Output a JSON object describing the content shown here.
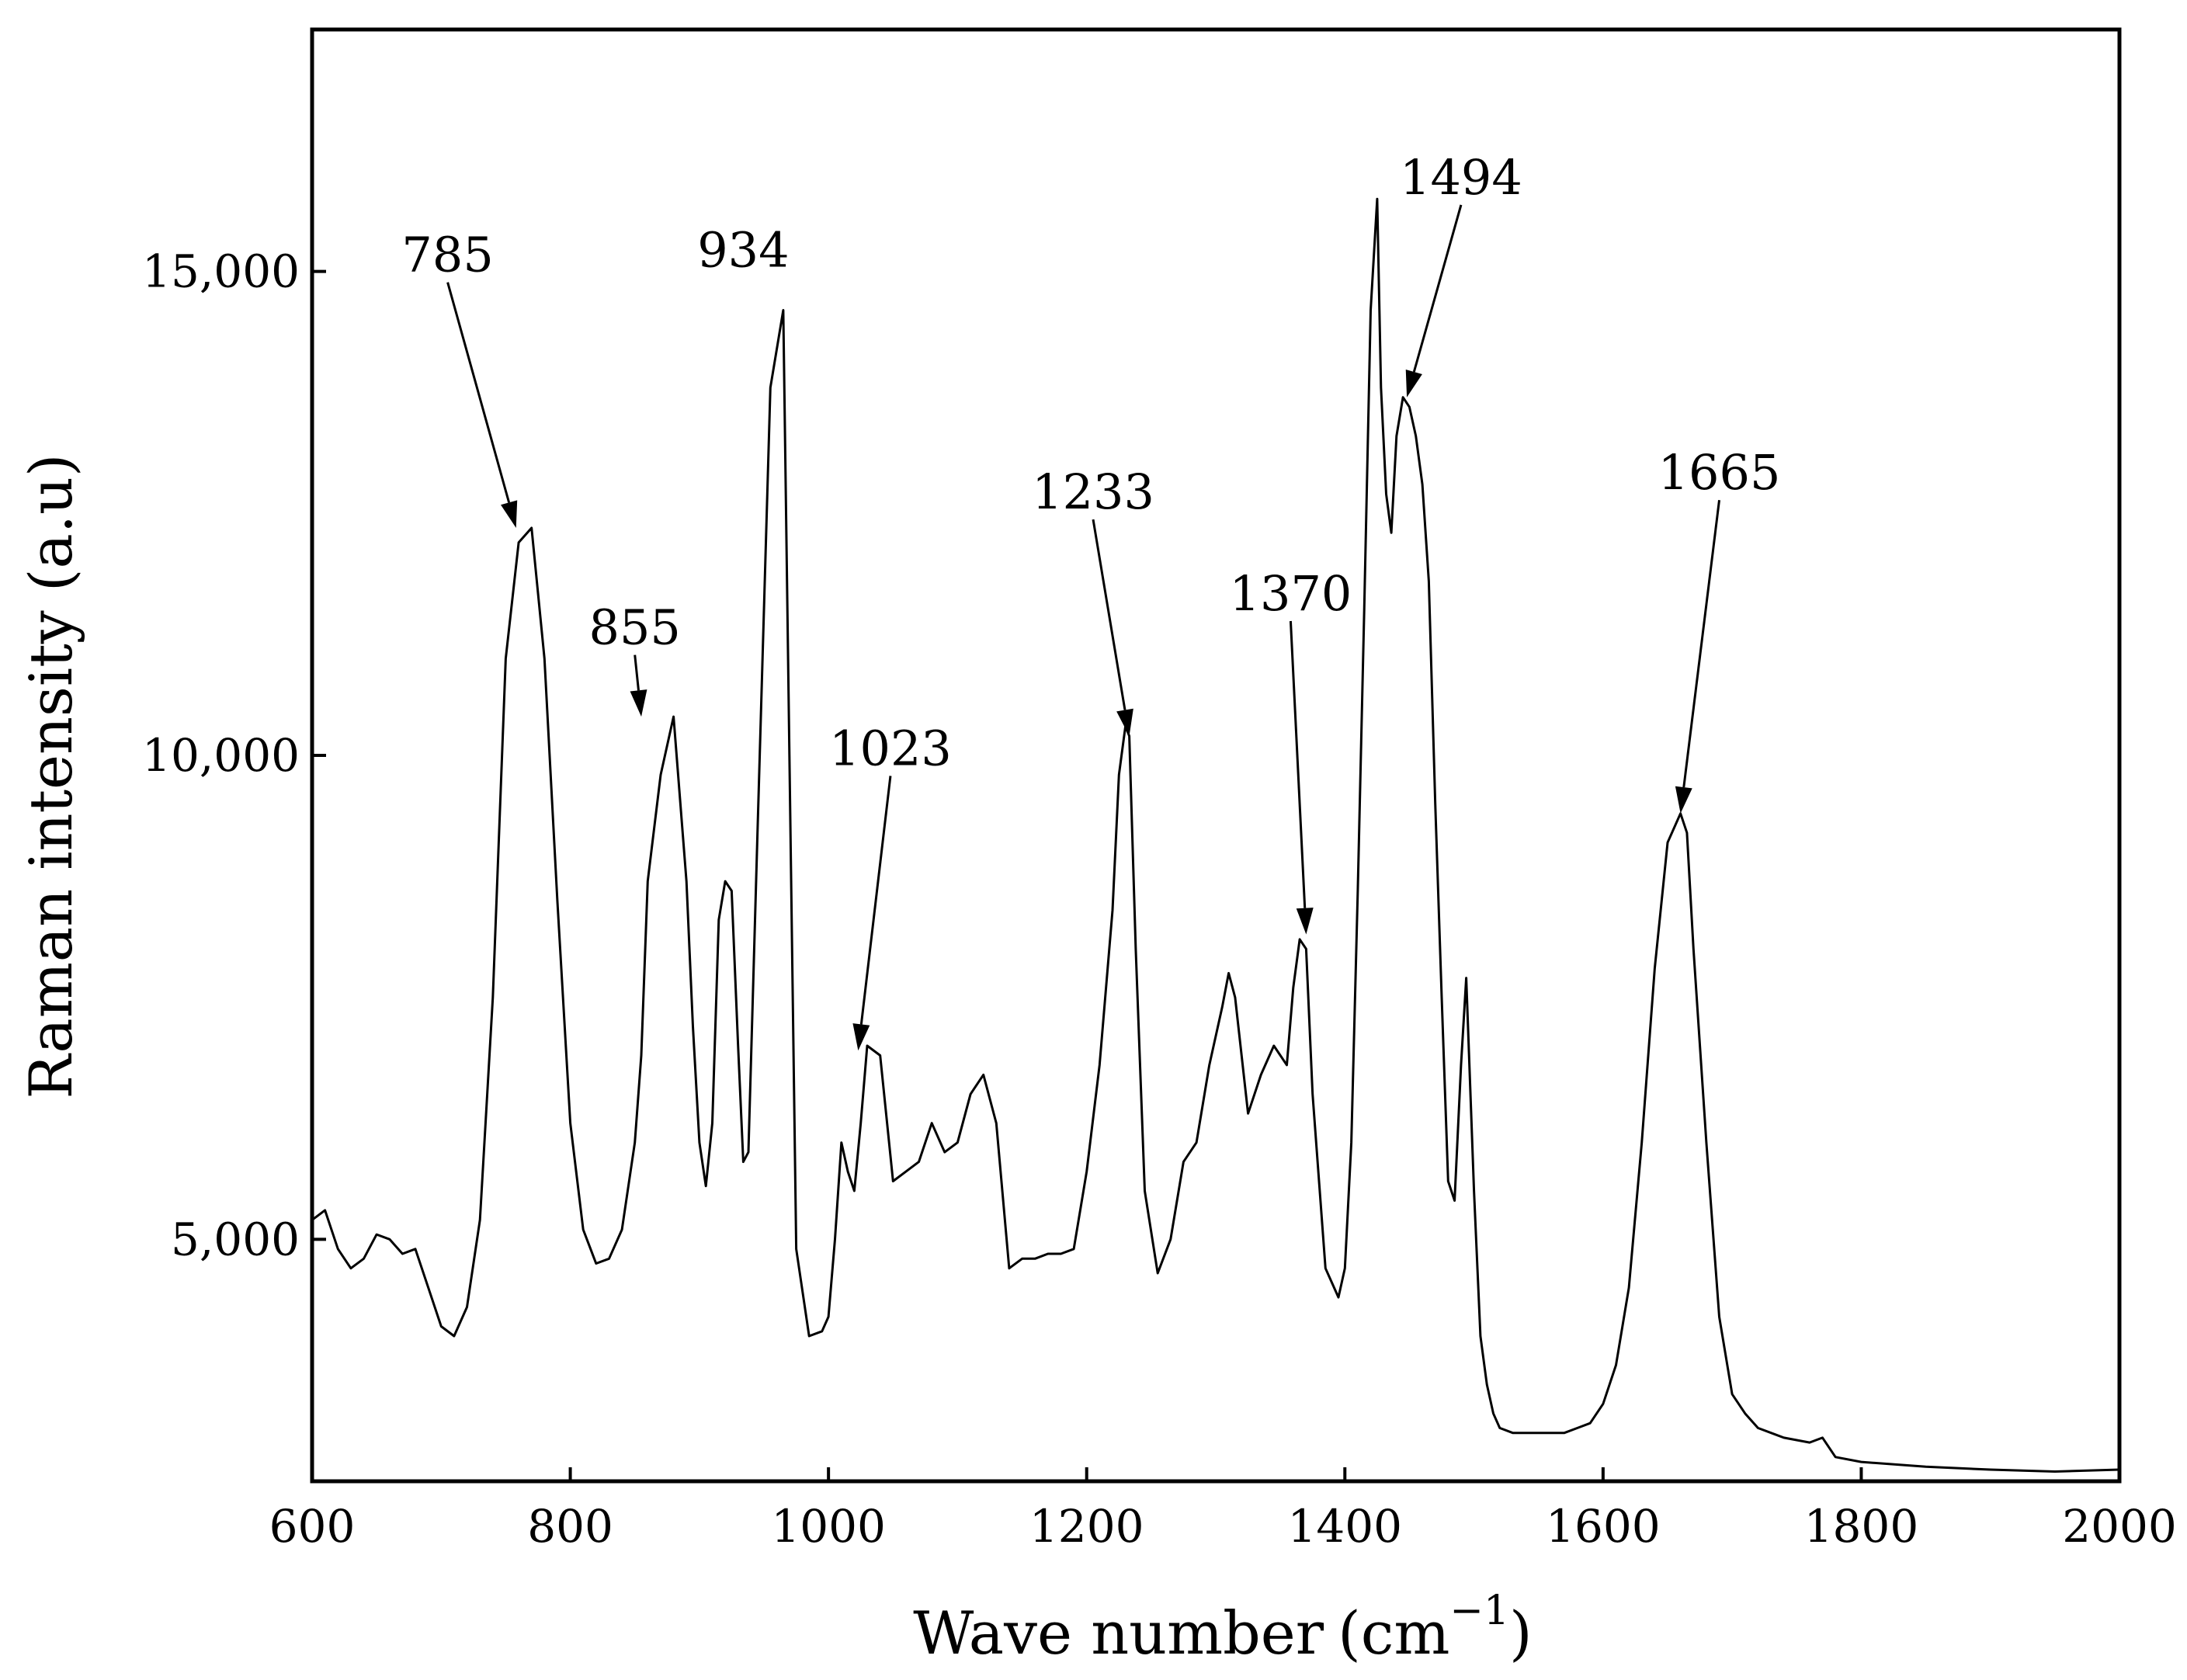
{
  "chart_data": {
    "type": "line",
    "title": "",
    "xlabel": "Wave number",
    "xlabel_unit_base": "(cm",
    "xlabel_unit_sup": "−1",
    "xlabel_unit_close": ")",
    "ylabel": "Raman intensity (a.u)",
    "xlim": [
      600,
      2000
    ],
    "ylim": [
      2500,
      17500
    ],
    "x_ticks": [
      600,
      800,
      1000,
      1200,
      1400,
      1600,
      1800,
      2000
    ],
    "x_tick_labels": [
      "600",
      "800",
      "1000",
      "1200",
      "1400",
      "1600",
      "1800",
      "2000"
    ],
    "y_ticks": [
      5000,
      10000,
      15000
    ],
    "y_tick_labels": [
      "5,000",
      "10,000",
      "15,000"
    ],
    "grid": false,
    "legend": "none",
    "line_color": "#000000",
    "series": [
      {
        "x": [
          600,
          610,
          620,
          630,
          640,
          650,
          660,
          670,
          680,
          690,
          700,
          710,
          720,
          730,
          740,
          750,
          760,
          770,
          780,
          790,
          800,
          810,
          820,
          830,
          840,
          850,
          855,
          860,
          870,
          880,
          890,
          895,
          900,
          905,
          910,
          915,
          920,
          925,
          930,
          934,
          938,
          945,
          955,
          965,
          975,
          985,
          995,
          1000,
          1005,
          1010,
          1015,
          1020,
          1025,
          1030,
          1040,
          1050,
          1060,
          1070,
          1080,
          1090,
          1100,
          1110,
          1120,
          1130,
          1140,
          1150,
          1160,
          1170,
          1180,
          1190,
          1200,
          1210,
          1220,
          1225,
          1230,
          1233,
          1238,
          1245,
          1255,
          1265,
          1275,
          1285,
          1295,
          1305,
          1310,
          1315,
          1325,
          1335,
          1345,
          1355,
          1360,
          1365,
          1370,
          1375,
          1385,
          1395,
          1400,
          1405,
          1410,
          1415,
          1420,
          1425,
          1428,
          1432,
          1436,
          1440,
          1445,
          1450,
          1455,
          1460,
          1465,
          1470,
          1475,
          1480,
          1485,
          1490,
          1494,
          1500,
          1505,
          1510,
          1515,
          1520,
          1530,
          1550,
          1570,
          1590,
          1600,
          1610,
          1620,
          1630,
          1640,
          1650,
          1660,
          1665,
          1670,
          1680,
          1690,
          1700,
          1710,
          1720,
          1740,
          1760,
          1770,
          1780,
          1800,
          1850,
          1900,
          1950,
          2000
        ],
        "y": [
          5200,
          5300,
          4900,
          4700,
          4800,
          5050,
          5000,
          4850,
          4900,
          4500,
          4100,
          4000,
          4300,
          5200,
          7500,
          11000,
          12200,
          12350,
          11000,
          8500,
          6200,
          5100,
          4750,
          4800,
          5100,
          6000,
          6900,
          8700,
          9800,
          10400,
          8700,
          7200,
          6000,
          5550,
          6200,
          8300,
          8700,
          8600,
          7000,
          5800,
          5900,
          9200,
          13800,
          14600,
          4900,
          4000,
          4050,
          4200,
          5000,
          6000,
          5700,
          5500,
          6200,
          7000,
          6900,
          5600,
          5700,
          5800,
          6200,
          5900,
          6000,
          6500,
          6700,
          6200,
          4700,
          4800,
          4800,
          4850,
          4850,
          4900,
          5700,
          6800,
          8400,
          9800,
          10300,
          10200,
          8000,
          5500,
          4650,
          5000,
          5800,
          6000,
          6800,
          7400,
          7750,
          7500,
          6300,
          6700,
          7000,
          6800,
          7600,
          8100,
          8000,
          6500,
          4700,
          4400,
          4700,
          6000,
          8600,
          11500,
          14600,
          15750,
          13800,
          12700,
          12300,
          13300,
          13700,
          13600,
          13300,
          12800,
          11800,
          9500,
          7500,
          5600,
          5400,
          6800,
          7700,
          5500,
          4000,
          3500,
          3200,
          3050,
          3000,
          3000,
          3000,
          3100,
          3300,
          3700,
          4500,
          6000,
          7800,
          9100,
          9400,
          9200,
          8000,
          6000,
          4200,
          3400,
          3200,
          3050,
          2950,
          2900,
          2950,
          2750,
          2700,
          2650,
          2620,
          2600,
          2620
        ]
      }
    ],
    "annotations": [
      {
        "label": "785",
        "x": 758,
        "y": 12350,
        "text_x": 705,
        "text_y": 15000
      },
      {
        "label": "855",
        "x": 855,
        "y": 10400,
        "text_x": 850,
        "text_y": 11150
      },
      {
        "label": "934",
        "x": 934,
        "y": 15050,
        "text_x": 934,
        "text_y": 15050
      },
      {
        "label": "1023",
        "x": 1023,
        "y": 6950,
        "text_x": 1048,
        "text_y": 9900
      },
      {
        "label": "1233",
        "x": 1233,
        "y": 10200,
        "text_x": 1205,
        "text_y": 12550
      },
      {
        "label": "1370",
        "x": 1370,
        "y": 8150,
        "text_x": 1358,
        "text_y": 11500
      },
      {
        "label": "1494",
        "x": 1448,
        "y": 13700,
        "text_x": 1490,
        "text_y": 15800
      },
      {
        "label": "1665",
        "x": 1660,
        "y": 9400,
        "text_x": 1690,
        "text_y": 12750
      }
    ]
  }
}
